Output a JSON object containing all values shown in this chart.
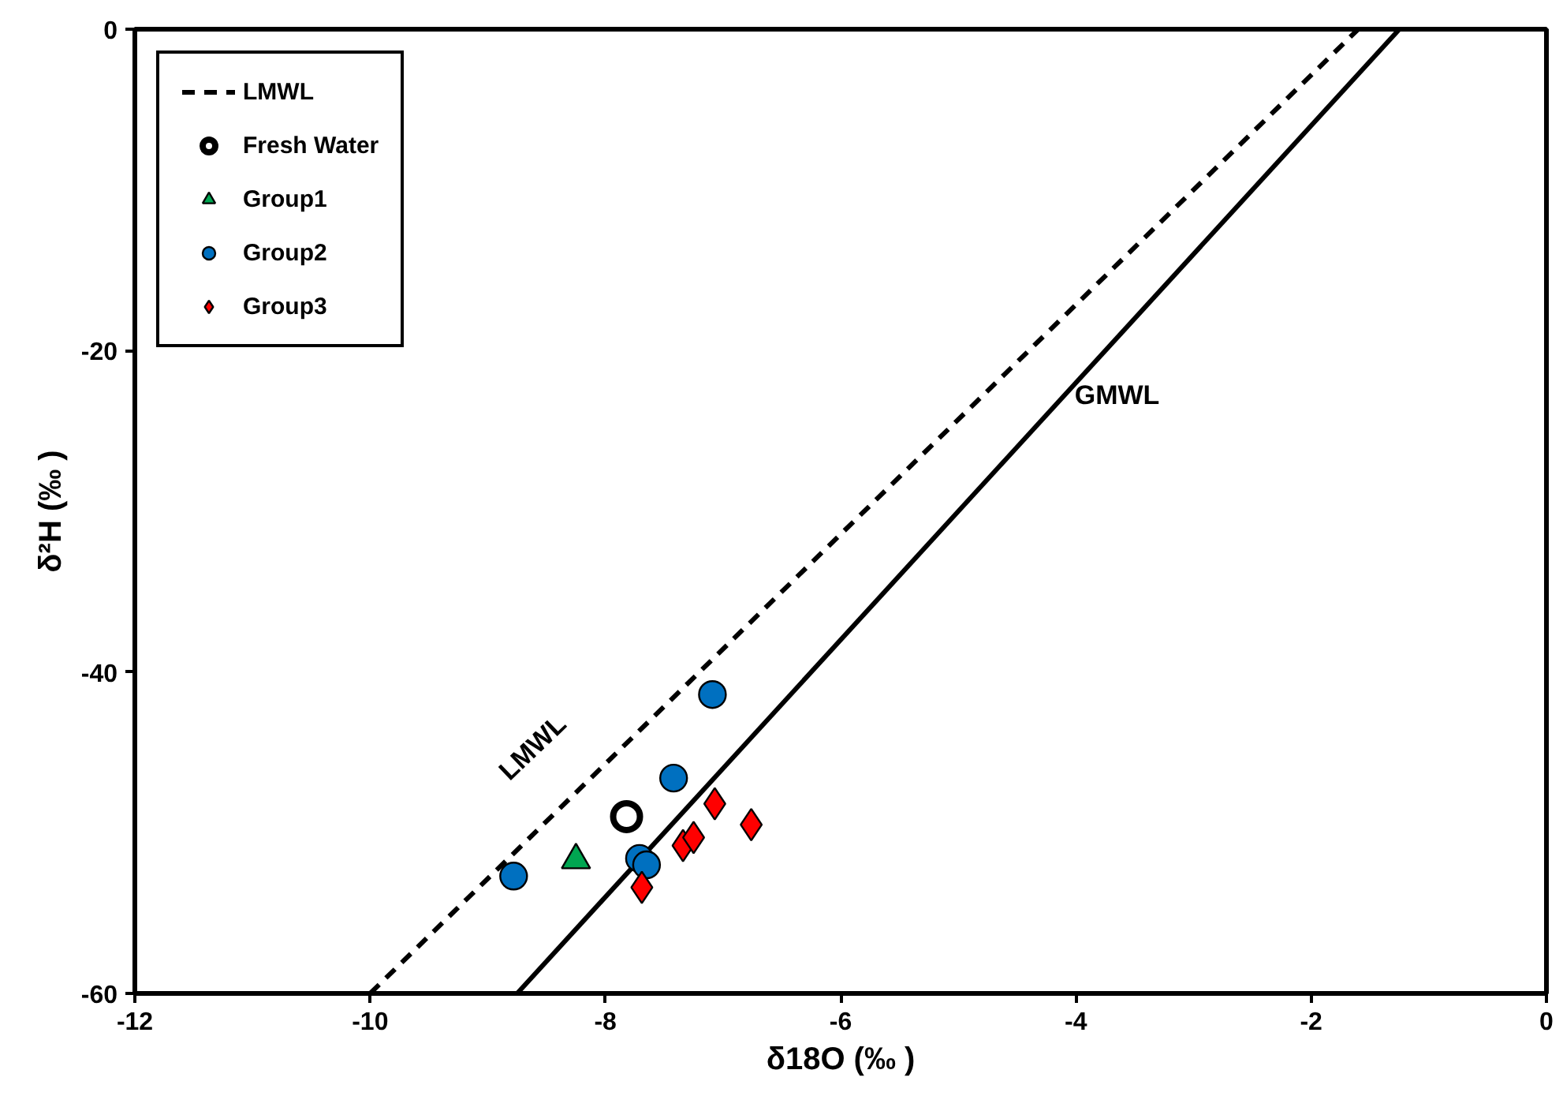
{
  "chart_data": {
    "type": "scatter",
    "xlabel": "δ18O (‰ )",
    "ylabel": "δ²H (‰ )",
    "xlim": [
      -12,
      0
    ],
    "ylim": [
      -60,
      0
    ],
    "xticks": [
      -12,
      -10,
      -8,
      -6,
      -4,
      -2,
      0
    ],
    "yticks": [
      -60,
      -40,
      -20,
      0
    ],
    "grid": false,
    "legend": "top left",
    "series": [
      {
        "name": "LMWL",
        "type": "line",
        "line_style": "dashed",
        "color": "#000000",
        "x": [
          -10.0,
          -1.6
        ],
        "values": [
          -60,
          0
        ]
      },
      {
        "type": "line",
        "line_style": "solid",
        "color": "#000000",
        "x": [
          -8.75,
          -1.25
        ],
        "values": [
          -60,
          0
        ]
      },
      {
        "name": "Fresh Water",
        "marker": "circle",
        "color": "#ffffff",
        "x": [
          -7.82
        ],
        "values": [
          -49.0
        ]
      },
      {
        "name": "Group1",
        "marker": "triangle",
        "color": "#00a651",
        "x": [
          -8.25
        ],
        "values": [
          -51.7
        ]
      },
      {
        "name": "Group2",
        "marker": "circle",
        "color": "#0070c0",
        "x": [
          -7.09,
          -7.42,
          -8.78,
          -7.71,
          -7.65
        ],
        "values": [
          -41.4,
          -46.6,
          -52.7,
          -51.6,
          -52.0
        ]
      },
      {
        "name": "Group3",
        "marker": "diamond",
        "color": "#ff0000",
        "x": [
          -7.07,
          -6.76,
          -7.34,
          -7.25,
          -7.69
        ],
        "values": [
          -48.2,
          -49.5,
          -50.8,
          -50.3,
          -53.4
        ]
      }
    ],
    "annotations": [
      "LMWL",
      "GMWL"
    ]
  }
}
